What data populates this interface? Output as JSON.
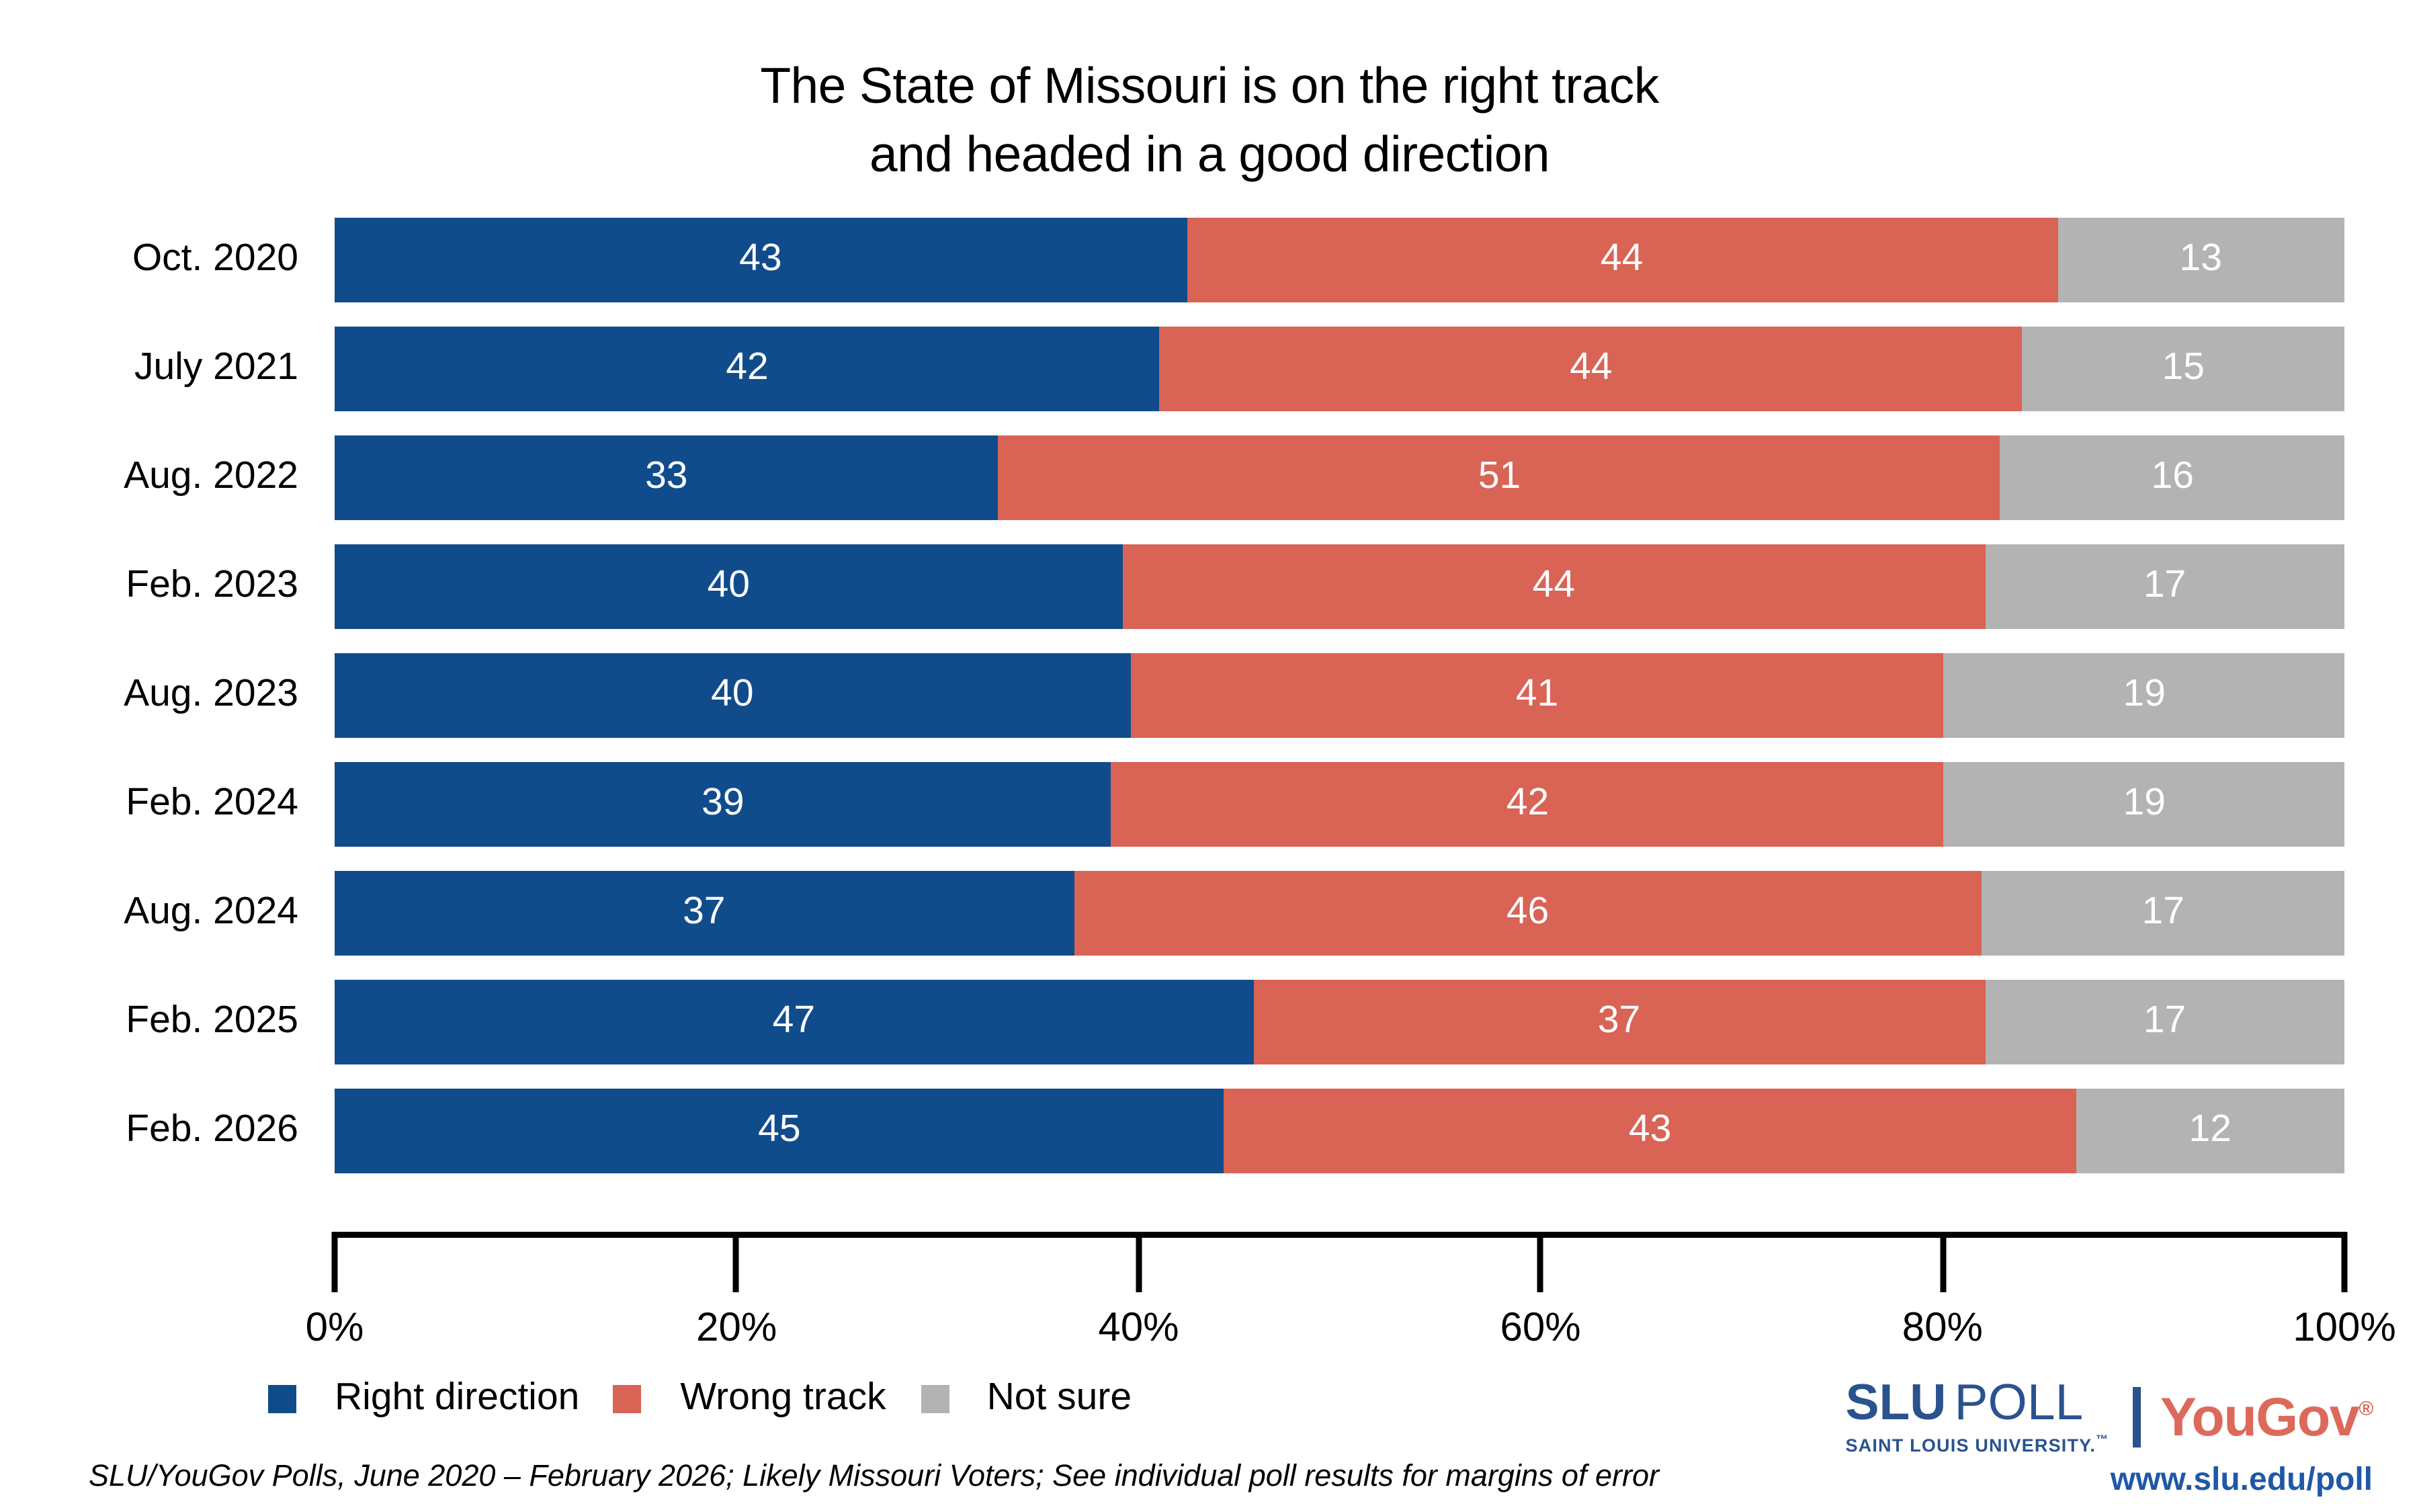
{
  "title": {
    "line1": "The State of Missouri is on the right track",
    "line2": "and headed in a good direction"
  },
  "chart_data": {
    "type": "bar",
    "variant": "horizontal-stacked-percent",
    "title": "The State of Missouri is on the right track and headed in a good direction",
    "categories": [
      "Oct. 2020",
      "July 2021",
      "Aug. 2022",
      "Feb. 2023",
      "Aug. 2023",
      "Feb. 2024",
      "Aug. 2024",
      "Feb. 2025",
      "Feb. 2026"
    ],
    "series": [
      {
        "name": "Right direction",
        "color": "#104C8C",
        "values": [
          43,
          42,
          33,
          40,
          40,
          39,
          37,
          47,
          45
        ]
      },
      {
        "name": "Wrong track",
        "color": "#D96355",
        "values": [
          44,
          44,
          51,
          44,
          41,
          42,
          46,
          37,
          43
        ]
      },
      {
        "name": "Not sure",
        "color": "#B3B3B3",
        "values": [
          13,
          15,
          16,
          17,
          19,
          19,
          17,
          17,
          12
        ]
      }
    ],
    "x_axis": {
      "tick_labels": [
        "0%",
        "20%",
        "40%",
        "60%",
        "80%",
        "100%"
      ],
      "tick_values": [
        0,
        20,
        40,
        60,
        80,
        100
      ],
      "range": [
        0,
        100
      ]
    },
    "value_labels": "white, centered in each segment",
    "legend_position": "bottom-left",
    "grid": false
  },
  "footer": {
    "source_note": "SLU/YouGov Polls, June 2020 – February 2026; Likely Missouri Voters; See individual poll results for margins of error"
  },
  "branding": {
    "slu_bold": "SLU",
    "slu_light": "POLL",
    "slu_subtitle": "SAINT LOUIS UNIVERSITY.",
    "slu_tm": "™",
    "partner": "YouGov",
    "partner_reg": "®",
    "url": "www.slu.edu/poll",
    "slu_blue": "#2A528F",
    "url_blue": "#2058A8",
    "yougov_red": "#DC6A5C"
  }
}
